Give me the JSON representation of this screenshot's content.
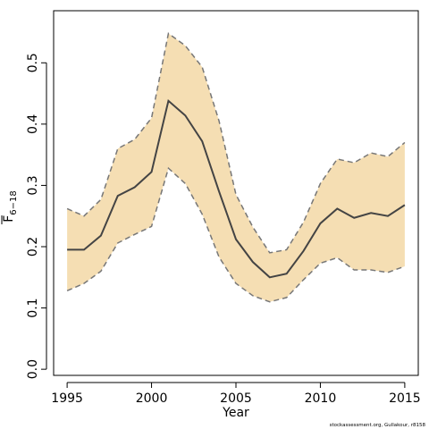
{
  "chart_data": {
    "type": "line",
    "title": "",
    "xlabel": "Year",
    "ylabel": {
      "main": "F",
      "subscript": "6−18"
    },
    "xlim": [
      1994.2,
      2015.8
    ],
    "ylim": [
      -0.01,
      0.585
    ],
    "xticks": [
      1995,
      2000,
      2005,
      2010,
      2015
    ],
    "xtick_labels": [
      "1995",
      "2000",
      "2005",
      "2010",
      "2015"
    ],
    "yticks": [
      0.0,
      0.1,
      0.2,
      0.3,
      0.4,
      0.5
    ],
    "ytick_labels": [
      "0.0",
      "0.1",
      "0.2",
      "0.3",
      "0.4",
      "0.5"
    ],
    "grid": false,
    "x": [
      1995,
      1996,
      1997,
      1998,
      1999,
      2000,
      2001,
      2002,
      2003,
      2004,
      2005,
      2006,
      2007,
      2008,
      2009,
      2010,
      2011,
      2012,
      2013,
      2014,
      2015
    ],
    "series": [
      {
        "role": "estimate",
        "values": [
          0.195,
          0.195,
          0.218,
          0.283,
          0.297,
          0.322,
          0.438,
          0.414,
          0.372,
          0.29,
          0.212,
          0.175,
          0.15,
          0.156,
          0.193,
          0.238,
          0.262,
          0.247,
          0.255,
          0.25,
          0.268
        ]
      },
      {
        "role": "upper",
        "values": [
          0.262,
          0.25,
          0.277,
          0.36,
          0.375,
          0.41,
          0.548,
          0.528,
          0.493,
          0.405,
          0.285,
          0.232,
          0.19,
          0.195,
          0.24,
          0.303,
          0.343,
          0.337,
          0.353,
          0.347,
          0.37
        ]
      },
      {
        "role": "lower",
        "values": [
          0.128,
          0.14,
          0.16,
          0.206,
          0.22,
          0.233,
          0.328,
          0.303,
          0.253,
          0.183,
          0.14,
          0.12,
          0.11,
          0.117,
          0.146,
          0.173,
          0.182,
          0.162,
          0.162,
          0.158,
          0.168
        ]
      }
    ]
  },
  "footer": {
    "credit": "stockassessment.org, Gullakour, r8158"
  },
  "colors": {
    "band": "#f5deb3",
    "line": "#444444",
    "bound": "#777777",
    "axis": "#000000"
  }
}
